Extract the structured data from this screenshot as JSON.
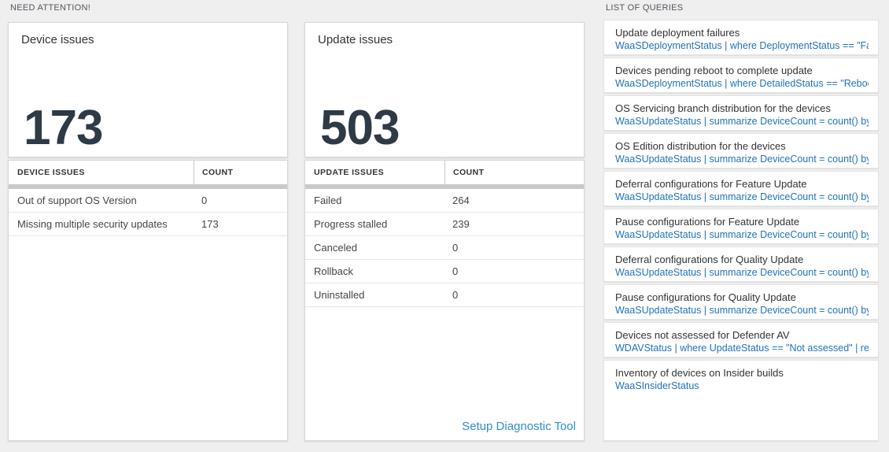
{
  "need_attention": {
    "label": "NEED ATTENTION!",
    "device_tile": {
      "title": "Device issues",
      "big_number": "173",
      "table": {
        "headers": [
          "DEVICE ISSUES",
          "COUNT"
        ],
        "rows": [
          {
            "label": "Out of support OS Version",
            "count": "0"
          },
          {
            "label": "Missing multiple security updates",
            "count": "173"
          }
        ]
      }
    },
    "update_tile": {
      "title": "Update issues",
      "big_number": "503",
      "table": {
        "headers": [
          "UPDATE ISSUES",
          "COUNT"
        ],
        "rows": [
          {
            "label": "Failed",
            "count": "264"
          },
          {
            "label": "Progress stalled",
            "count": "239"
          },
          {
            "label": "Canceled",
            "count": "0"
          },
          {
            "label": "Rollback",
            "count": "0"
          },
          {
            "label": "Uninstalled",
            "count": "0"
          }
        ]
      },
      "diagnostic_link": "Setup Diagnostic Tool"
    }
  },
  "queries_panel": {
    "label": "LIST OF QUERIES",
    "items": [
      {
        "title": "Update deployment failures",
        "query": "WaaSDeploymentStatus | where DeploymentStatus == \"Failed\" |..."
      },
      {
        "title": "Devices pending reboot to complete update",
        "query": "WaaSDeploymentStatus | where DetailedStatus == \"Reboot pend..."
      },
      {
        "title": "OS Servicing branch distribution for the devices",
        "query": "WaaSUpdateStatus | summarize DeviceCount = count() by OSSer..."
      },
      {
        "title": "OS Edition distribution for the devices",
        "query": "WaaSUpdateStatus | summarize DeviceCount = count() by OSEdit..."
      },
      {
        "title": "Deferral configurations for Feature Update",
        "query": "WaaSUpdateStatus | summarize DeviceCount = count() by Featur..."
      },
      {
        "title": "Pause configurations for Feature Update",
        "query": "WaaSUpdateStatus | summarize DeviceCount = count() by Featur..."
      },
      {
        "title": "Deferral configurations for Quality Update",
        "query": "WaaSUpdateStatus | summarize DeviceCount = count() by Qualit..."
      },
      {
        "title": "Pause configurations for Quality Update",
        "query": "WaaSUpdateStatus | summarize DeviceCount = count() by Qualit..."
      },
      {
        "title": "Devices not assessed for Defender AV",
        "query": "WDAVStatus | where UpdateStatus == \"Not assessed\" | render ta..."
      },
      {
        "title": "Inventory of devices on Insider builds",
        "query": "WaaSInsiderStatus"
      }
    ]
  },
  "colors": {
    "page_bg": "#efefef",
    "tile_bg": "#ffffff",
    "tile_border": "#d7d7d7",
    "big_number": "#2e3a45",
    "query_blue": "#1f73b9",
    "link_blue": "#2f8fce",
    "scrollbar_gray": "#c9c9c9",
    "section_label": "#50575e"
  }
}
